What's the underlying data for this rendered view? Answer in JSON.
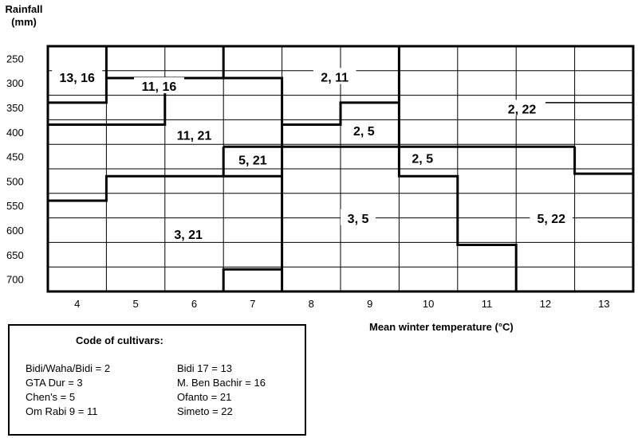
{
  "chart_data": {
    "type": "heatmap",
    "ylabel_line1": "Rainfall",
    "ylabel_line2": "(mm)",
    "xlabel": "Mean winter temperature (°C)",
    "x_ticks": [
      "4",
      "5",
      "6",
      "7",
      "8",
      "9",
      "10",
      "11",
      "12",
      "13"
    ],
    "y_ticks": [
      "250",
      "300",
      "350",
      "400",
      "450",
      "500",
      "550",
      "600",
      "650",
      "700"
    ],
    "regions": [
      {
        "label": "13, 16",
        "x": 4.0,
        "y": 290
      },
      {
        "label": "11, 16",
        "x": 5.4,
        "y": 308
      },
      {
        "label": "2, 11",
        "x": 8.4,
        "y": 289
      },
      {
        "label": "2, 22",
        "x": 11.6,
        "y": 354
      },
      {
        "label": "11, 21",
        "x": 6.0,
        "y": 408
      },
      {
        "label": "2, 5",
        "x": 8.9,
        "y": 399
      },
      {
        "label": "5, 21",
        "x": 7.0,
        "y": 458
      },
      {
        "label": "2, 5",
        "x": 9.9,
        "y": 455
      },
      {
        "label": "3, 5",
        "x": 8.8,
        "y": 577
      },
      {
        "label": "5, 22",
        "x": 12.1,
        "y": 577
      },
      {
        "label": "3, 21",
        "x": 5.9,
        "y": 610
      }
    ]
  },
  "legend": {
    "title": "Code of cultivars:",
    "items_left": [
      "Bidi/Waha/Bidi = 2",
      "GTA Dur = 3",
      "Chen's = 5",
      "Om Rabi 9 = 11"
    ],
    "items_right": [
      "Bidi 17 = 13",
      "M. Ben Bachir = 16",
      "Ofanto = 21",
      "Simeto = 22"
    ]
  }
}
